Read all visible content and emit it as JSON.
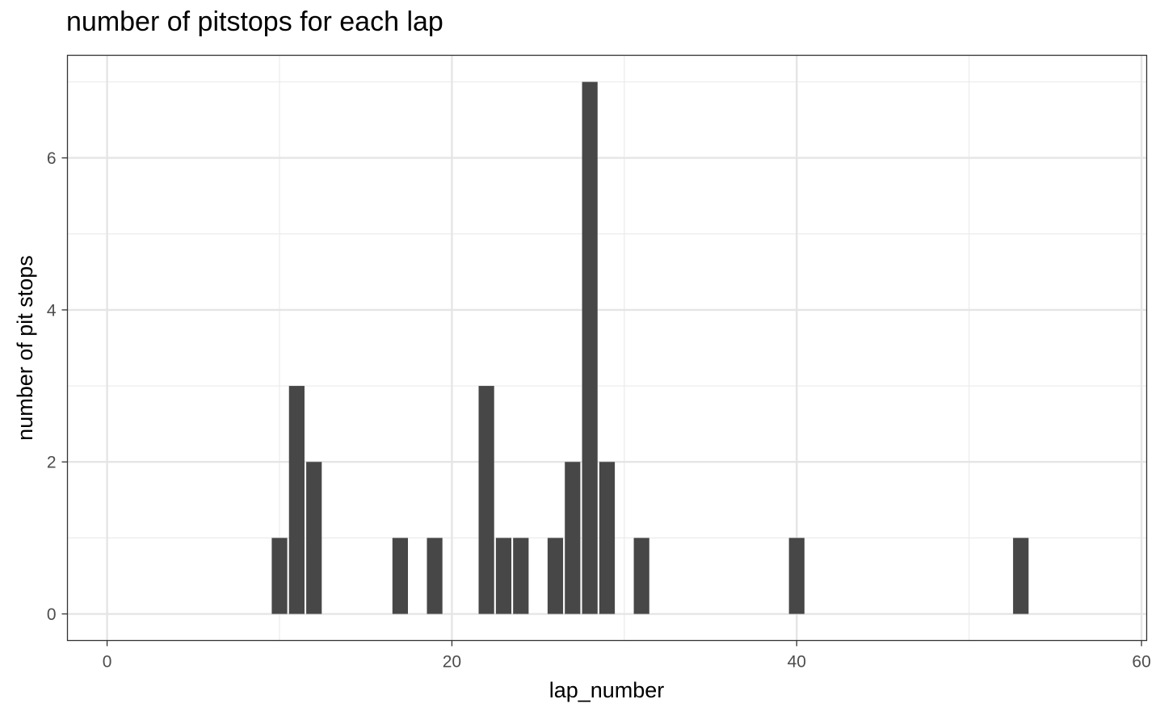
{
  "chart_data": {
    "type": "bar",
    "title": "number of pitstops for each lap",
    "xlabel": "lap_number",
    "ylabel": "number of pit stops",
    "x": [
      10,
      11,
      12,
      17,
      19,
      22,
      23,
      24,
      26,
      27,
      28,
      29,
      31,
      40,
      53
    ],
    "values": [
      1,
      3,
      2,
      1,
      1,
      3,
      1,
      1,
      1,
      2,
      7,
      2,
      1,
      1,
      1
    ],
    "xlim": [
      -2.3,
      60.3
    ],
    "ylim": [
      -0.35,
      7.35
    ],
    "xticks": [
      0,
      20,
      40,
      60
    ],
    "yticks": [
      0,
      2,
      4,
      6
    ],
    "grid": true,
    "bar_color": "#474747"
  }
}
